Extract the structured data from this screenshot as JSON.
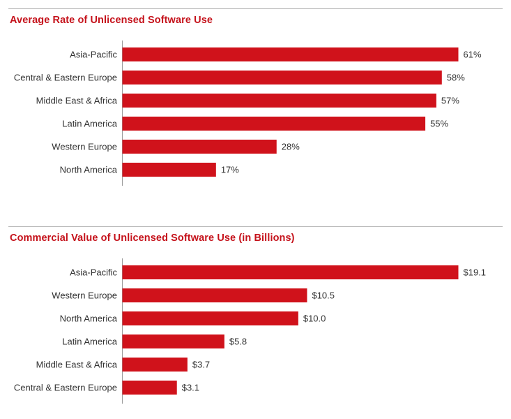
{
  "colors": {
    "bar": "#d0121b",
    "title": "#c5121b",
    "text": "#333333",
    "axis": "#9a9a9a",
    "rule": "#b9b9b9"
  },
  "chart_data": [
    {
      "type": "bar",
      "orientation": "horizontal",
      "title": "Average Rate of Unlicensed Software Use",
      "categories": [
        "Asia-Pacific",
        "Central & Eastern Europe",
        "Middle East & Africa",
        "Latin America",
        "Western Europe",
        "North America"
      ],
      "values": [
        61,
        58,
        57,
        55,
        28,
        17
      ],
      "value_labels": [
        "61%",
        "58%",
        "57%",
        "55%",
        "28%",
        "17%"
      ],
      "unit": "%",
      "xlim": [
        0,
        61
      ],
      "grid": false,
      "legend": "none"
    },
    {
      "type": "bar",
      "orientation": "horizontal",
      "title": "Commercial Value of Unlicensed Software Use (in Billions)",
      "categories": [
        "Asia-Pacific",
        "Western Europe",
        "North America",
        "Latin America",
        "Middle East & Africa",
        "Central & Eastern Europe"
      ],
      "values": [
        19.1,
        10.5,
        10.0,
        5.8,
        3.7,
        3.1
      ],
      "value_labels": [
        "$19.1",
        "$10.5",
        "$10.0",
        "$5.8",
        "$3.7",
        "$3.1"
      ],
      "unit": "$ billions",
      "xlim": [
        0,
        19.1
      ],
      "grid": false,
      "legend": "none"
    }
  ]
}
